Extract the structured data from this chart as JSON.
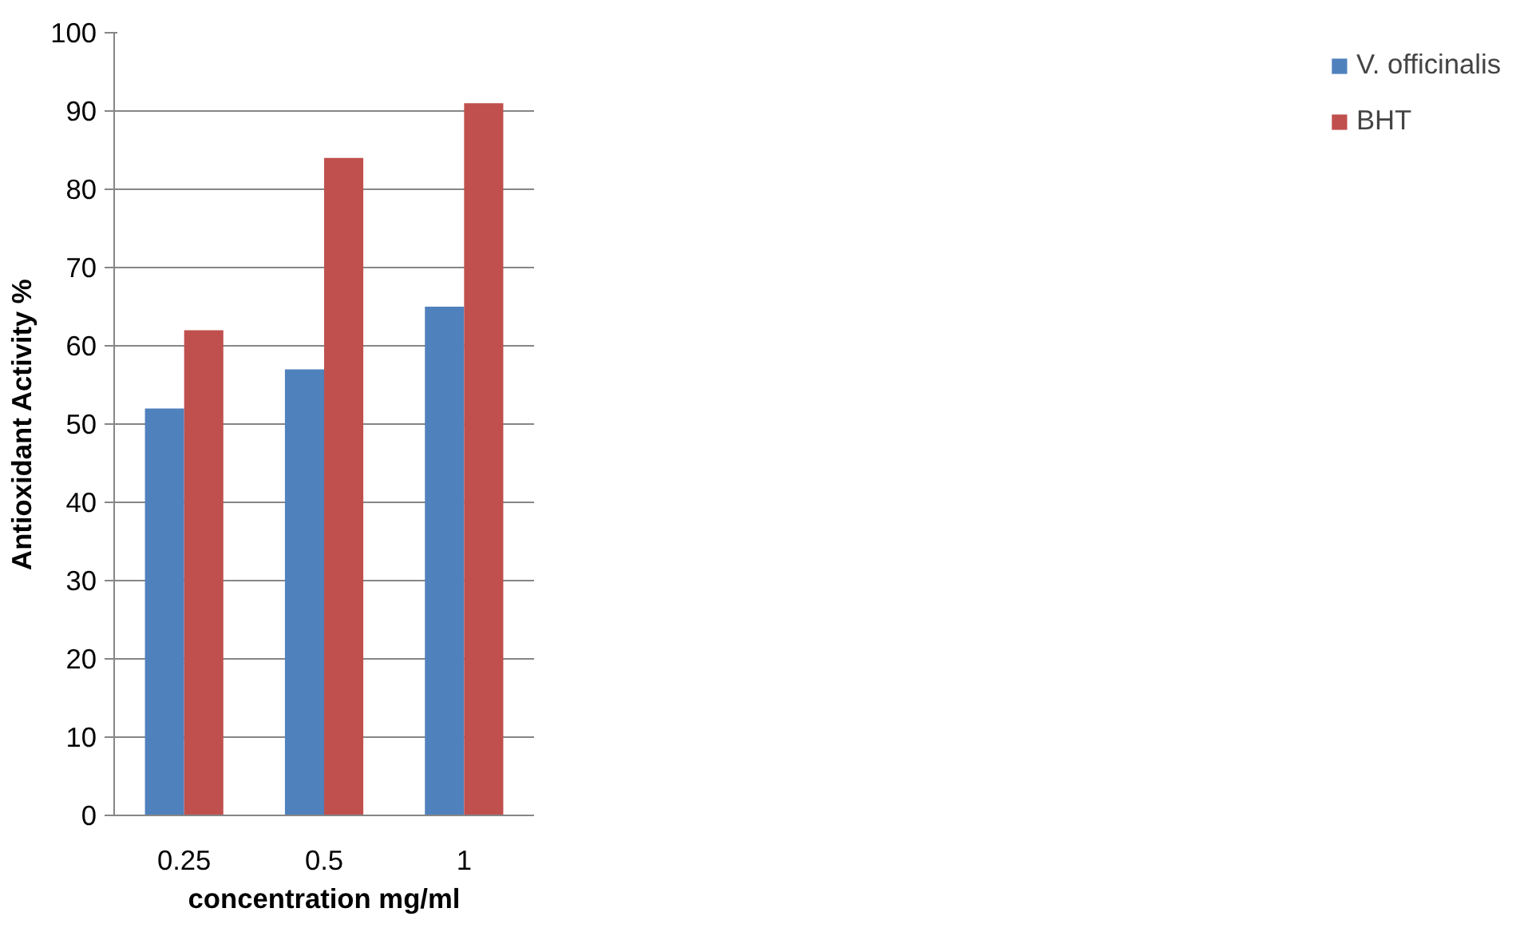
{
  "chart_data": {
    "type": "bar",
    "xlabel": "concentration mg/ml",
    "ylabel": "Antioxidant Activity %",
    "categories": [
      "0.25",
      "0.5",
      "1"
    ],
    "series": [
      {
        "name": "V. officinalis",
        "color": "#4f81bd",
        "values": [
          52,
          57,
          65
        ]
      },
      {
        "name": "BHT",
        "color": "#c0504d",
        "values": [
          62,
          84,
          91
        ]
      }
    ],
    "ylim": [
      0,
      100
    ],
    "yticks": [
      0,
      10,
      20,
      30,
      40,
      50,
      60,
      70,
      80,
      90,
      100
    ],
    "grid": "y",
    "legend": "right"
  }
}
